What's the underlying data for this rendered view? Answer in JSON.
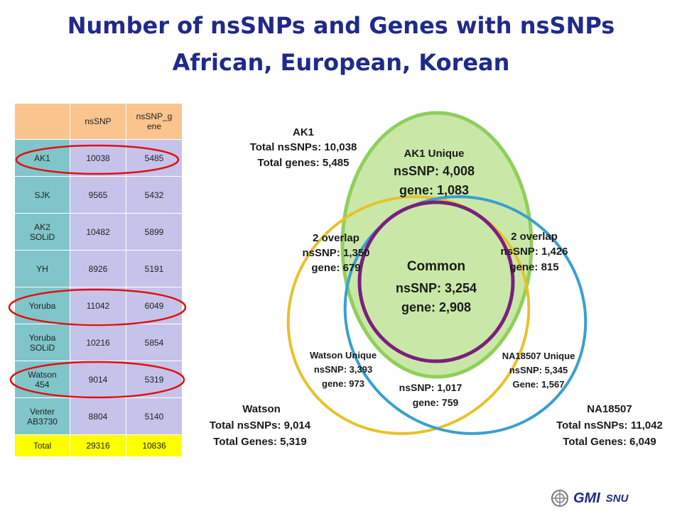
{
  "title": {
    "line1": "Number of nsSNPs and Genes with nsSNPs",
    "line2": "African, European, Korean"
  },
  "table": {
    "headers": [
      "",
      "nsSNP",
      "nsSNP_gene"
    ],
    "rows": [
      {
        "name": "AK1",
        "nssnp": "10038",
        "gene": "5485",
        "circled": true
      },
      {
        "name": "SJK",
        "nssnp": "9565",
        "gene": "5432",
        "circled": false
      },
      {
        "name": "AK2 SOLiD",
        "nssnp": "10482",
        "gene": "5899",
        "circled": false
      },
      {
        "name": "YH",
        "nssnp": "8926",
        "gene": "5191",
        "circled": false
      },
      {
        "name": "Yoruba",
        "nssnp": "11042",
        "gene": "6049",
        "circled": true
      },
      {
        "name": "Yoruba SOLiD",
        "nssnp": "10216",
        "gene": "5854",
        "circled": false
      },
      {
        "name": "Watson 454",
        "nssnp": "9014",
        "gene": "5319",
        "circled": true
      },
      {
        "name": "Venter AB3730",
        "nssnp": "8804",
        "gene": "5140",
        "circled": false
      }
    ],
    "total": {
      "name": "Total",
      "nssnp": "29316",
      "gene": "10836"
    }
  },
  "venn": {
    "ak1_outer": [
      "AK1",
      "Total nsSNPs: 10,038",
      "Total genes: 5,485"
    ],
    "ak1_unique": [
      "AK1 Unique",
      "nsSNP: 4,008",
      "gene: 1,083"
    ],
    "overlap_left": [
      "2 overlap",
      "nsSNP: 1,350",
      "gene: 679"
    ],
    "overlap_right": [
      "2 overlap",
      "nsSNP: 1,426",
      "gene: 815"
    ],
    "common": [
      "Common",
      "nsSNP: 3,254",
      "gene: 2,908"
    ],
    "watson_unique": [
      "Watson Unique",
      "nsSNP: 3,393",
      "gene: 973"
    ],
    "na_unique": [
      "NA18507 Unique",
      "nsSNP: 5,345",
      "Gene: 1,567"
    ],
    "overlap_bottom": [
      "nsSNP: 1,017",
      "gene: 759"
    ],
    "watson_outer": [
      "Watson",
      "Total nsSNPs: 9,014",
      "Total Genes: 5,319"
    ],
    "na_outer": [
      "NA18507",
      "Total nsSNPs: 11,042",
      "Total Genes: 6,049"
    ],
    "colors": {
      "ak1": "#8fcf5a",
      "ak1_fill": "#c9e8a8",
      "watson": "#e8c12a",
      "na": "#3a9fd0",
      "common": "#7b1f7f"
    }
  },
  "footer": {
    "logo": "GMI",
    "sub": "SNU"
  }
}
